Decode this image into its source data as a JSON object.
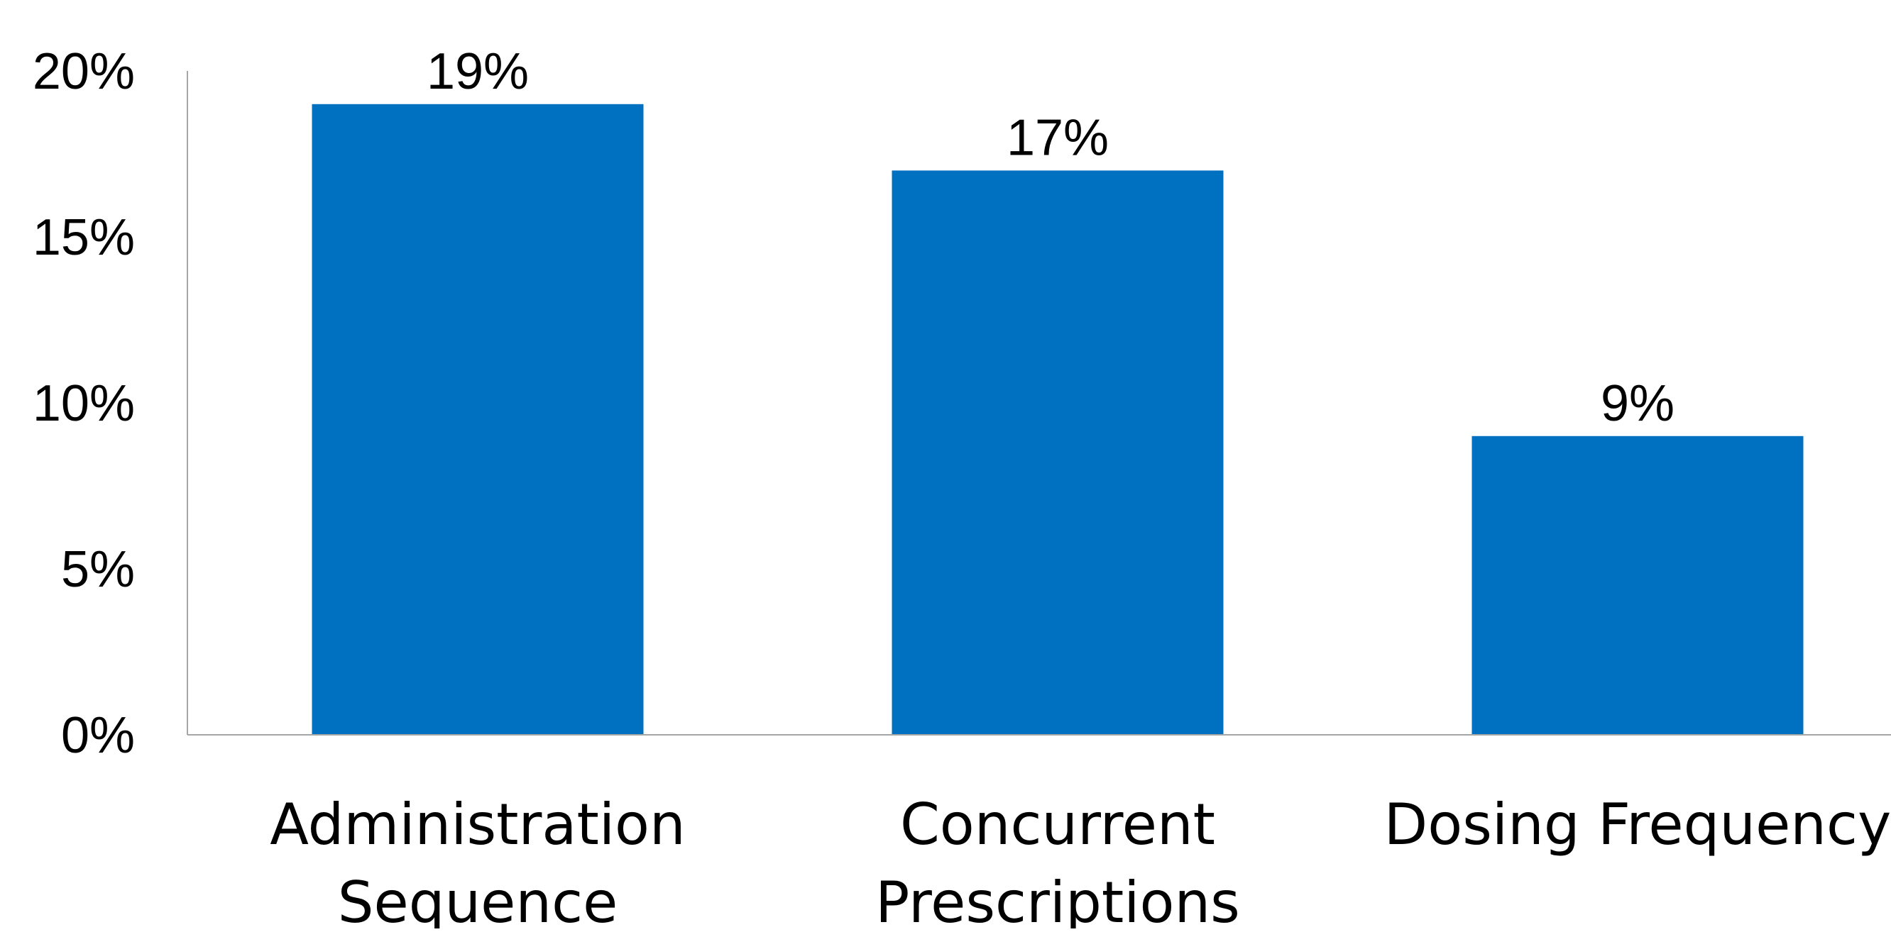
{
  "chart_data": {
    "type": "bar",
    "categories": [
      [
        "Administration",
        "Sequence"
      ],
      [
        "Concurrent",
        "Prescriptions"
      ],
      [
        "Dosing Frequency"
      ]
    ],
    "values": [
      19,
      17,
      9
    ],
    "data_labels": [
      "19%",
      "17%",
      "9%"
    ],
    "yticks": [
      0,
      5,
      10,
      15,
      20
    ],
    "ytick_labels": [
      "0%",
      "5%",
      "10%",
      "15%",
      "20%"
    ],
    "ylim": [
      0,
      20
    ],
    "grid": false,
    "legend": "none",
    "bar_color": "#0070C0",
    "axis_color": "#A6A6A6"
  }
}
